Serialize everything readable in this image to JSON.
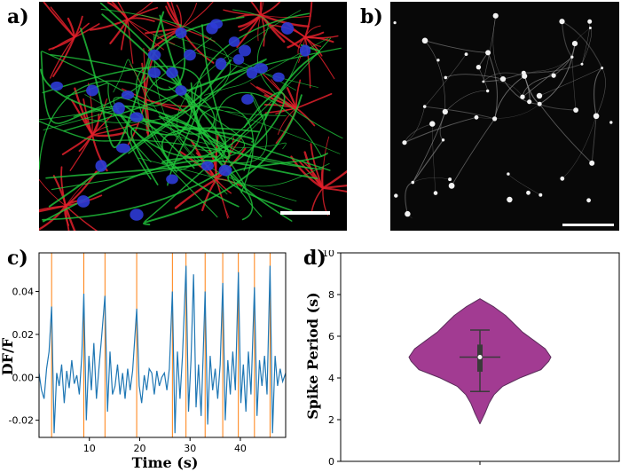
{
  "panels": {
    "a": {
      "label": "a)"
    },
    "b": {
      "label": "b)"
    },
    "c": {
      "label": "c)"
    },
    "d": {
      "label": "d)"
    }
  },
  "colors": {
    "red_stain": "#e0202a",
    "green_stain": "#20c83c",
    "blue_stain": "#2d3bd6",
    "trace": "#1f77b4",
    "spike_marker": "#ff7f0e",
    "violin_fill": "#a23b92",
    "violin_edge": "#5a2d5a"
  },
  "chart_data": [
    {
      "type": "line",
      "panel": "c",
      "title": "",
      "xlabel": "Time (s)",
      "ylabel": "DF/F",
      "xlim": [
        0,
        49
      ],
      "ylim": [
        -0.028,
        0.058
      ],
      "xticks": [
        10,
        20,
        30,
        40
      ],
      "yticks": [
        -0.02,
        0.0,
        0.02,
        0.04
      ],
      "ytick_labels": [
        "-0.02",
        "0.00",
        "0.02",
        "0.04"
      ],
      "spike_times": [
        2.5,
        8.9,
        13.1,
        19.4,
        26.5,
        29.2,
        33.0,
        36.5,
        39.6,
        42.8,
        45.9
      ],
      "series": [
        {
          "name": "DF/F trace",
          "x": [
            0,
            0.5,
            1.0,
            1.5,
            2.0,
            2.5,
            3.0,
            3.5,
            4.0,
            4.5,
            5.0,
            5.5,
            6.0,
            6.5,
            7.0,
            7.5,
            8.0,
            8.5,
            8.9,
            9.4,
            9.9,
            10.4,
            10.9,
            11.4,
            11.9,
            12.4,
            13.1,
            13.6,
            14.1,
            14.6,
            15.1,
            15.6,
            16.1,
            16.6,
            17.1,
            17.6,
            18.1,
            18.6,
            19.4,
            19.9,
            20.4,
            20.9,
            21.4,
            21.9,
            22.4,
            22.9,
            23.4,
            23.9,
            24.4,
            24.9,
            25.4,
            25.9,
            26.5,
            27.0,
            27.5,
            28.0,
            28.5,
            29.2,
            29.7,
            30.2,
            30.7,
            31.2,
            31.7,
            32.2,
            32.6,
            33.0,
            33.5,
            34.0,
            34.5,
            35.0,
            35.5,
            36.0,
            36.5,
            37.0,
            37.5,
            38.0,
            38.5,
            39.0,
            39.6,
            40.1,
            40.6,
            41.1,
            41.6,
            42.1,
            42.8,
            43.3,
            43.8,
            44.3,
            44.8,
            45.3,
            45.9,
            46.4,
            46.9,
            47.4,
            47.9,
            48.4,
            49.0
          ],
          "y": [
            0.002,
            -0.006,
            -0.01,
            0.004,
            0.012,
            0.033,
            -0.026,
            0.002,
            -0.004,
            0.006,
            -0.012,
            0.003,
            -0.005,
            0.008,
            -0.003,
            0.001,
            -0.008,
            0.01,
            0.039,
            -0.02,
            0.01,
            -0.006,
            0.016,
            -0.01,
            0.004,
            0.018,
            0.038,
            -0.016,
            0.012,
            -0.008,
            -0.004,
            0.006,
            -0.008,
            0.002,
            -0.01,
            0.004,
            -0.006,
            0.003,
            0.032,
            -0.004,
            -0.012,
            0.001,
            -0.006,
            0.004,
            0.002,
            -0.008,
            0.003,
            -0.004,
            0.0,
            0.002,
            -0.006,
            0.004,
            0.04,
            -0.026,
            0.012,
            -0.01,
            0.01,
            0.052,
            -0.016,
            0.008,
            0.048,
            -0.014,
            0.006,
            -0.018,
            0.01,
            0.04,
            -0.022,
            0.01,
            -0.006,
            0.004,
            -0.01,
            0.006,
            0.044,
            -0.02,
            0.008,
            -0.008,
            0.012,
            -0.006,
            0.049,
            -0.012,
            0.006,
            -0.016,
            0.012,
            -0.008,
            0.042,
            -0.018,
            0.008,
            -0.004,
            0.01,
            -0.008,
            0.052,
            -0.026,
            0.01,
            -0.004,
            0.004,
            -0.002,
            0.002
          ]
        }
      ]
    },
    {
      "type": "violin",
      "panel": "d",
      "title": "",
      "xlabel": "",
      "ylabel": "Spike Period (s)",
      "ylim": [
        0,
        10
      ],
      "yticks": [
        0,
        2,
        4,
        6,
        8,
        10
      ],
      "distribution": {
        "min": 1.8,
        "max": 7.8,
        "whisker_low": 3.35,
        "whisker_high": 6.3,
        "q1": 4.3,
        "q3": 5.6,
        "median": 5.0,
        "density_profile": [
          [
            1.8,
            0.0
          ],
          [
            2.3,
            0.07
          ],
          [
            2.8,
            0.13
          ],
          [
            3.2,
            0.2
          ],
          [
            3.6,
            0.32
          ],
          [
            4.0,
            0.56
          ],
          [
            4.4,
            0.86
          ],
          [
            4.8,
            0.97
          ],
          [
            5.0,
            1.0
          ],
          [
            5.4,
            0.92
          ],
          [
            5.8,
            0.76
          ],
          [
            6.2,
            0.6
          ],
          [
            6.6,
            0.48
          ],
          [
            7.0,
            0.36
          ],
          [
            7.4,
            0.2
          ],
          [
            7.8,
            0.0
          ]
        ]
      }
    }
  ]
}
